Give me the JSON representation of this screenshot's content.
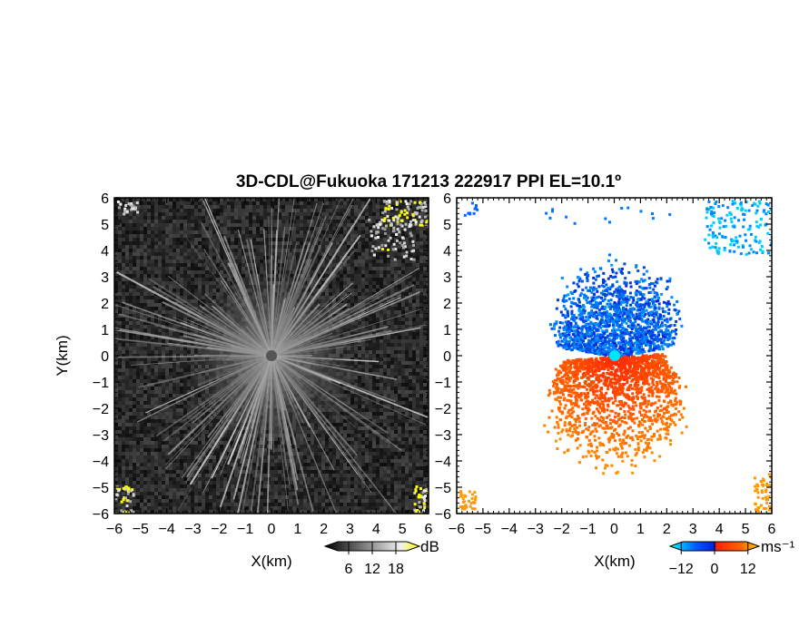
{
  "chart_data": {
    "title": "3D-CDL@Fukuoka 171213 222917 PPI EL=10.1º",
    "panels": [
      {
        "type": "heatmap",
        "quantity": "radar reflectivity (grayscale)",
        "xlabel": "X(km)",
        "ylabel": "Y(km)",
        "xlim": [
          -6,
          6
        ],
        "ylim": [
          -6,
          6
        ],
        "x_ticks": [
          "−6",
          "−5",
          "−4",
          "−3",
          "−2",
          "−1",
          "0",
          "1",
          "2",
          "3",
          "4",
          "5",
          "6"
        ],
        "y_ticks": [
          "6",
          "5",
          "4",
          "3",
          "2",
          "1",
          "0",
          "−1",
          "−2",
          "−3",
          "−4",
          "−5",
          "−6"
        ],
        "colorbar": {
          "unit": "dB",
          "ticks": [
            "6",
            "12",
            "18"
          ],
          "range": [
            0,
            24
          ],
          "colors": [
            "#000000",
            "#ffffff",
            "#ffff00"
          ]
        },
        "features": {
          "radial_beams_from_center": true,
          "center_blank_radius_km": 0.2,
          "clutter_corners": [
            "top-left",
            "top-right",
            "bottom-left",
            "bottom-right"
          ]
        }
      },
      {
        "type": "heatmap",
        "quantity": "Doppler radial velocity",
        "xlabel": "X(km)",
        "xlim": [
          -6,
          6
        ],
        "ylim": [
          -6,
          6
        ],
        "x_ticks": [
          "−6",
          "−5",
          "−4",
          "−3",
          "−2",
          "−1",
          "0",
          "1",
          "2",
          "3",
          "4",
          "5",
          "6"
        ],
        "y_ticks": [
          "6",
          "5",
          "4",
          "3",
          "2",
          "1",
          "0",
          "−1",
          "−2",
          "−3",
          "−4",
          "−5",
          "−6"
        ],
        "colorbar": {
          "unit": "ms⁻¹",
          "ticks": [
            "−12",
            "0",
            "12"
          ],
          "range": [
            -16,
            16
          ],
          "colors": [
            "#00ffff",
            "#0033ff",
            "#ff2200",
            "#ffaa00"
          ]
        },
        "features": {
          "approaching_sector": "north (negative, blue)",
          "receding_sector": "south-east (positive, red/orange)",
          "max_range_km": 3.5
        }
      }
    ]
  }
}
